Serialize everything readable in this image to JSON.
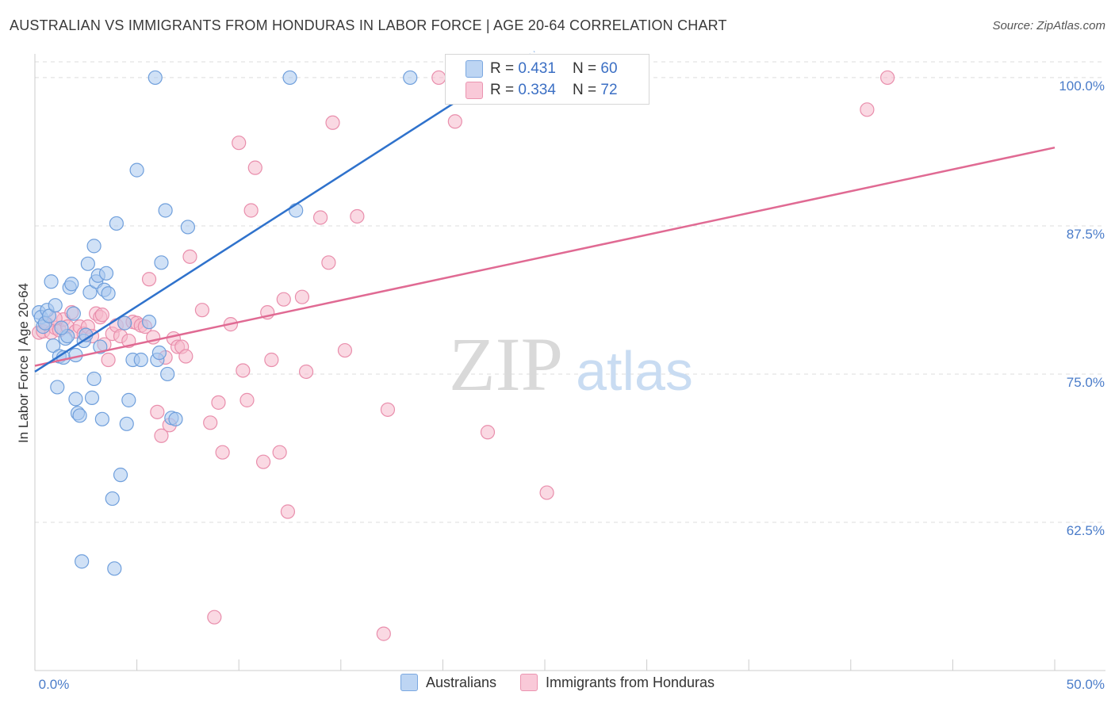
{
  "title": "AUSTRALIAN VS IMMIGRANTS FROM HONDURAS IN LABOR FORCE | AGE 20-64 CORRELATION CHART",
  "source": "Source: ZipAtlas.com",
  "watermark": {
    "zip": "ZIP",
    "atlas": "atlas"
  },
  "legend_box": {
    "rows": [
      {
        "r_label": "R = ",
        "r_value": "0.431",
        "n_label": "N = ",
        "n_value": "60"
      },
      {
        "r_label": "R = ",
        "r_value": "0.334",
        "n_label": "N = ",
        "n_value": "72"
      }
    ]
  },
  "bottom_legend": [
    "Australians",
    "Immigrants from Honduras"
  ],
  "colors": {
    "blue_fill": "#a9c8ef",
    "blue_stroke": "#6f9fdc",
    "blue_line": "#2f72cc",
    "pink_fill": "#f6b9cc",
    "pink_stroke": "#e98eac",
    "pink_line": "#e06a93",
    "tick_label": "#4a7cc9",
    "grid": "#dcdcdc"
  },
  "chart_data": {
    "type": "scatter",
    "title": "AUSTRALIAN VS IMMIGRANTS FROM HONDURAS IN LABOR FORCE | AGE 20-64 CORRELATION CHART",
    "xlabel": "",
    "ylabel": "In Labor Force | Age 20-64",
    "xlim": [
      0,
      50
    ],
    "ylim": [
      50,
      102
    ],
    "x_tick_labels": [
      {
        "value": 0,
        "label": "0.0%"
      },
      {
        "value": 50,
        "label": "50.0%"
      }
    ],
    "y_ticks": [
      {
        "value": 100,
        "label": "100.0%"
      },
      {
        "value": 87.5,
        "label": "87.5%"
      },
      {
        "value": 75,
        "label": "75.0%"
      },
      {
        "value": 62.5,
        "label": "62.5%"
      }
    ],
    "series": [
      {
        "name": "Australians",
        "r": 0.431,
        "n": 60,
        "trend": {
          "x": [
            0,
            20.5
          ],
          "y": [
            75.2,
            97.8
          ]
        },
        "points": [
          [
            0.2,
            80.2
          ],
          [
            0.3,
            79.8
          ],
          [
            0.4,
            79.0
          ],
          [
            0.5,
            79.3
          ],
          [
            0.6,
            80.4
          ],
          [
            0.7,
            79.9
          ],
          [
            0.8,
            82.8
          ],
          [
            0.9,
            77.4
          ],
          [
            1.0,
            80.8
          ],
          [
            1.1,
            73.9
          ],
          [
            1.2,
            76.5
          ],
          [
            1.4,
            76.4
          ],
          [
            1.5,
            78.0
          ],
          [
            1.6,
            78.2
          ],
          [
            1.7,
            82.3
          ],
          [
            1.8,
            82.6
          ],
          [
            1.9,
            80.1
          ],
          [
            2.0,
            76.6
          ],
          [
            2.0,
            72.9
          ],
          [
            2.1,
            71.7
          ],
          [
            2.2,
            71.5
          ],
          [
            2.4,
            77.8
          ],
          [
            2.5,
            78.3
          ],
          [
            2.6,
            84.3
          ],
          [
            2.7,
            81.9
          ],
          [
            2.8,
            73.0
          ],
          [
            2.9,
            85.8
          ],
          [
            2.9,
            74.6
          ],
          [
            3.0,
            82.8
          ],
          [
            3.1,
            83.3
          ],
          [
            3.2,
            77.3
          ],
          [
            3.3,
            71.2
          ],
          [
            3.4,
            82.1
          ],
          [
            3.5,
            83.5
          ],
          [
            3.6,
            81.8
          ],
          [
            3.8,
            64.5
          ],
          [
            3.9,
            58.6
          ],
          [
            4.0,
            87.7
          ],
          [
            4.2,
            66.5
          ],
          [
            4.4,
            79.3
          ],
          [
            4.5,
            70.8
          ],
          [
            4.6,
            72.8
          ],
          [
            4.8,
            76.2
          ],
          [
            5.0,
            92.2
          ],
          [
            5.2,
            76.2
          ],
          [
            5.6,
            79.4
          ],
          [
            5.9,
            100.0
          ],
          [
            6.0,
            76.2
          ],
          [
            6.1,
            76.8
          ],
          [
            6.2,
            84.4
          ],
          [
            6.4,
            88.8
          ],
          [
            6.5,
            75.0
          ],
          [
            6.7,
            71.3
          ],
          [
            6.9,
            71.2
          ],
          [
            7.5,
            87.4
          ],
          [
            12.5,
            100.0
          ],
          [
            12.8,
            88.8
          ],
          [
            18.4,
            100.0
          ],
          [
            2.3,
            59.2
          ],
          [
            1.3,
            78.9
          ]
        ]
      },
      {
        "name": "Immigrants from Honduras",
        "r": 0.334,
        "n": 72,
        "trend": {
          "x": [
            0,
            50
          ],
          "y": [
            75.7,
            94.1
          ]
        },
        "points": [
          [
            0.2,
            78.5
          ],
          [
            0.4,
            78.6
          ],
          [
            0.6,
            79.2
          ],
          [
            0.8,
            78.5
          ],
          [
            1.0,
            78.9
          ],
          [
            1.2,
            78.7
          ],
          [
            1.4,
            79.6
          ],
          [
            1.6,
            79.0
          ],
          [
            1.8,
            80.2
          ],
          [
            2.0,
            78.6
          ],
          [
            2.2,
            79.0
          ],
          [
            2.4,
            78.4
          ],
          [
            2.6,
            79.0
          ],
          [
            2.8,
            78.2
          ],
          [
            3.0,
            80.1
          ],
          [
            3.2,
            79.8
          ],
          [
            3.4,
            77.5
          ],
          [
            3.6,
            76.2
          ],
          [
            3.8,
            78.4
          ],
          [
            4.0,
            79.1
          ],
          [
            4.2,
            78.2
          ],
          [
            4.4,
            79.3
          ],
          [
            4.6,
            77.8
          ],
          [
            4.8,
            79.4
          ],
          [
            5.0,
            79.3
          ],
          [
            5.2,
            79.1
          ],
          [
            5.4,
            79.0
          ],
          [
            5.6,
            83.0
          ],
          [
            5.8,
            78.1
          ],
          [
            6.0,
            71.8
          ],
          [
            6.2,
            69.8
          ],
          [
            6.4,
            76.4
          ],
          [
            6.6,
            70.7
          ],
          [
            6.8,
            78.0
          ],
          [
            7.0,
            77.3
          ],
          [
            7.2,
            77.3
          ],
          [
            7.4,
            76.5
          ],
          [
            7.6,
            84.9
          ],
          [
            8.2,
            80.4
          ],
          [
            8.6,
            70.9
          ],
          [
            8.8,
            54.5
          ],
          [
            9.0,
            72.6
          ],
          [
            9.2,
            68.4
          ],
          [
            9.6,
            79.2
          ],
          [
            10.0,
            94.5
          ],
          [
            10.2,
            75.3
          ],
          [
            10.4,
            72.8
          ],
          [
            10.6,
            88.8
          ],
          [
            10.8,
            92.4
          ],
          [
            11.2,
            67.6
          ],
          [
            11.4,
            80.2
          ],
          [
            11.6,
            76.2
          ],
          [
            12.0,
            68.4
          ],
          [
            12.2,
            81.3
          ],
          [
            12.4,
            63.4
          ],
          [
            13.1,
            81.5
          ],
          [
            13.3,
            75.2
          ],
          [
            14.0,
            88.2
          ],
          [
            14.4,
            84.4
          ],
          [
            14.6,
            96.2
          ],
          [
            15.2,
            77.0
          ],
          [
            15.8,
            88.3
          ],
          [
            17.1,
            53.1
          ],
          [
            17.3,
            72.0
          ],
          [
            19.8,
            100.0
          ],
          [
            20.6,
            96.3
          ],
          [
            22.2,
            70.1
          ],
          [
            25.1,
            65.0
          ],
          [
            40.8,
            97.3
          ],
          [
            41.8,
            100.0
          ],
          [
            1.0,
            79.7
          ],
          [
            3.3,
            80.0
          ]
        ]
      }
    ]
  }
}
